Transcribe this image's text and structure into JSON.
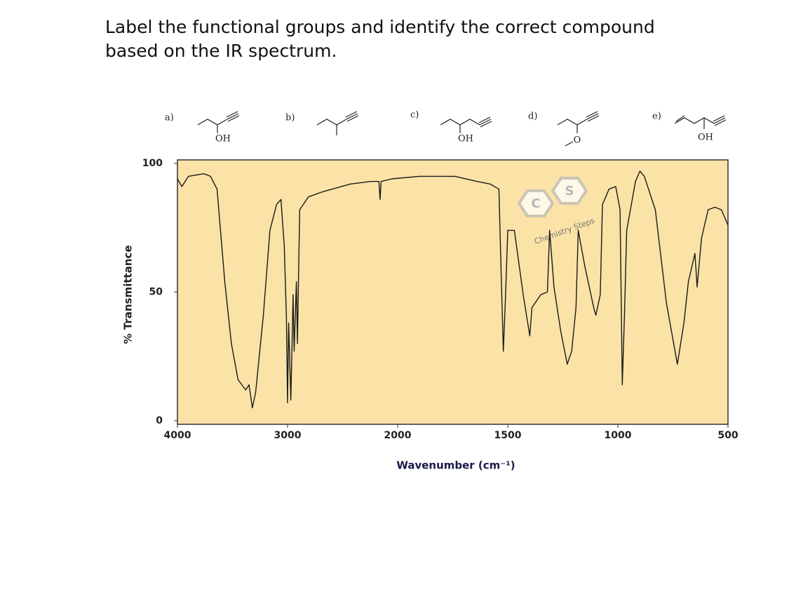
{
  "question": "Label the functional groups and identify the correct compound based on the IR spectrum.",
  "options": [
    {
      "label": "a)",
      "substituent": "OH"
    },
    {
      "label": "b)"
    },
    {
      "label": "c)",
      "substituent": "OH"
    },
    {
      "label": "d)",
      "substituent": "O"
    },
    {
      "label": "e)",
      "substituent": "OH"
    }
  ],
  "watermark": "Chemistry Steps",
  "chart_data": {
    "type": "line",
    "xlabel": "Wavenumber (cm⁻¹)",
    "ylabel": "% Transmittance",
    "x": [
      4000,
      3960,
      3900,
      3760,
      3700,
      3640,
      3570,
      3510,
      3450,
      3380,
      3350,
      3320,
      3290,
      3220,
      3160,
      3100,
      3060,
      3030,
      3010,
      3000,
      2990,
      2970,
      2950,
      2940,
      2920,
      2910,
      2890,
      2810,
      2680,
      2430,
      2240,
      2170,
      2160,
      2150,
      2050,
      1900,
      1740,
      1640,
      1580,
      1540,
      1530,
      1520,
      1510,
      1500,
      1470,
      1430,
      1400,
      1390,
      1350,
      1320,
      1310,
      1290,
      1260,
      1230,
      1210,
      1190,
      1180,
      1150,
      1110,
      1100,
      1080,
      1070,
      1040,
      1010,
      990,
      980,
      970,
      960,
      920,
      900,
      880,
      830,
      780,
      730,
      700,
      680,
      650,
      640,
      620,
      590,
      560,
      530,
      500
    ],
    "values": [
      94,
      91,
      95,
      96,
      95,
      90,
      54,
      30,
      16,
      12,
      14,
      5,
      11,
      41,
      74,
      84,
      86,
      68,
      40,
      7,
      38,
      8,
      49,
      27,
      54,
      30,
      82,
      87,
      89,
      92,
      93,
      93,
      86,
      93,
      94,
      95,
      95,
      93,
      92,
      90,
      57,
      27,
      49,
      74,
      74,
      49,
      33,
      44,
      49,
      50,
      74,
      52,
      35,
      22,
      27,
      44,
      74,
      60,
      44,
      41,
      49,
      84,
      90,
      91,
      82,
      14,
      41,
      74,
      93,
      97,
      95,
      82,
      46,
      22,
      38,
      54,
      65,
      52,
      71,
      82,
      83,
      82,
      76
    ],
    "color": "#1a1a1a",
    "xlim": [
      4000,
      500
    ],
    "xticks": [
      4000,
      3000,
      2000,
      1500,
      1000,
      500
    ],
    "xscale": {
      "break": 2000,
      "ratio": 2
    },
    "ylim": [
      0,
      100
    ],
    "yticks": [
      0,
      50,
      100
    ]
  }
}
